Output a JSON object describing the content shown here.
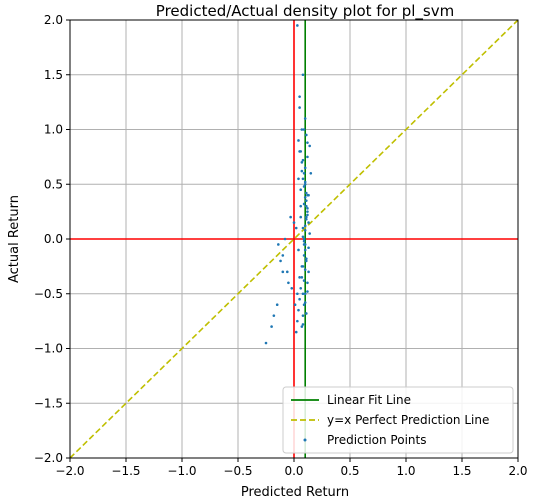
{
  "chart_data": {
    "type": "scatter",
    "title": "Predicted/Actual density plot for pl_svm",
    "xlabel": "Predicted Return",
    "ylabel": "Actual Return",
    "xlim": [
      -2.0,
      2.0
    ],
    "ylim": [
      -2.0,
      2.0
    ],
    "xticks": [
      "−2.0",
      "−1.5",
      "−1.0",
      "−0.5",
      "0.0",
      "0.5",
      "1.0",
      "1.5",
      "2.0"
    ],
    "yticks": [
      "−2.0",
      "−1.5",
      "−1.0",
      "−0.5",
      "0.0",
      "0.5",
      "1.0",
      "1.5",
      "2.0"
    ],
    "grid": true,
    "legend_position": "bottom-right",
    "reference_lines": {
      "vertical_red_x": 0.0,
      "horizontal_red_y": 0.0,
      "linear_fit_x": 0.1
    },
    "series": [
      {
        "name": "Linear Fit Line",
        "type": "line",
        "color": "#008000",
        "x": [
          0.1,
          0.1
        ],
        "y": [
          -2.0,
          2.0
        ]
      },
      {
        "name": "y=x Perfect Prediction Line",
        "type": "line",
        "style": "dashed",
        "color": "#bfbf00",
        "x": [
          -2.0,
          2.0
        ],
        "y": [
          -2.0,
          2.0
        ]
      },
      {
        "name": "Prediction Points",
        "type": "scatter",
        "color": "#1f77b4",
        "x": [
          0.03,
          0.05,
          0.08,
          0.04,
          0.07,
          0.09,
          0.1,
          0.12,
          0.11,
          0.06,
          0.08,
          0.09,
          0.1,
          0.11,
          0.13,
          0.12,
          0.1,
          0.09,
          0.08,
          0.07,
          0.05,
          0.06,
          0.11,
          0.12,
          0.13,
          0.14,
          0.1,
          0.09,
          0.08,
          0.07,
          0.06,
          0.05,
          0.04,
          0.03,
          0.02,
          -0.05,
          -0.1,
          -0.15,
          -0.2,
          -0.25,
          -0.08,
          -0.12,
          -0.03,
          0.0,
          0.02,
          0.04,
          0.06,
          0.08,
          0.1,
          0.12,
          0.14,
          0.15,
          0.13,
          0.11,
          0.09,
          0.07,
          0.05,
          0.03,
          0.01,
          -0.02,
          -0.06,
          -0.1,
          -0.14,
          -0.18,
          0.09,
          0.1,
          0.11,
          0.12,
          0.08,
          0.07,
          0.1,
          0.11,
          0.09,
          0.12,
          0.1,
          0.08,
          0.13,
          0.11,
          0.1,
          0.09,
          0.12,
          0.1,
          0.11,
          0.08,
          0.09,
          0.1,
          0.12,
          0.11,
          0.1,
          0.09,
          0.05,
          0.07,
          0.06,
          0.04,
          0.08
        ],
        "y": [
          1.95,
          1.2,
          1.5,
          0.9,
          0.7,
          0.6,
          0.5,
          0.4,
          0.3,
          0.2,
          0.1,
          0.0,
          -0.1,
          -0.2,
          -0.3,
          -0.4,
          -0.5,
          -0.6,
          -0.7,
          -0.8,
          0.8,
          0.45,
          0.35,
          0.25,
          0.15,
          0.05,
          -0.05,
          -0.15,
          -0.25,
          -0.35,
          -0.45,
          -0.55,
          -0.65,
          -0.75,
          -0.85,
          -0.4,
          -0.3,
          -0.6,
          -0.8,
          -0.95,
          0.0,
          -0.2,
          0.2,
          0.15,
          0.1,
          -0.1,
          0.3,
          0.55,
          0.65,
          0.75,
          0.85,
          0.6,
          0.4,
          0.2,
          -0.05,
          -0.25,
          -0.35,
          -0.5,
          -0.6,
          -0.45,
          -0.3,
          -0.15,
          -0.05,
          -0.7,
          1.0,
          1.1,
          0.95,
          0.88,
          0.72,
          0.62,
          0.52,
          0.42,
          0.32,
          0.22,
          0.12,
          0.02,
          -0.08,
          -0.18,
          -0.28,
          -0.38,
          -0.48,
          -0.58,
          -0.68,
          -0.78,
          0.48,
          0.38,
          0.28,
          0.18,
          0.08,
          -0.02,
          1.3,
          1.0,
          0.8,
          0.55,
          -0.5
        ]
      }
    ],
    "legend_entries": [
      "Linear Fit Line",
      "y=x Perfect Prediction Line",
      "Prediction Points"
    ]
  }
}
